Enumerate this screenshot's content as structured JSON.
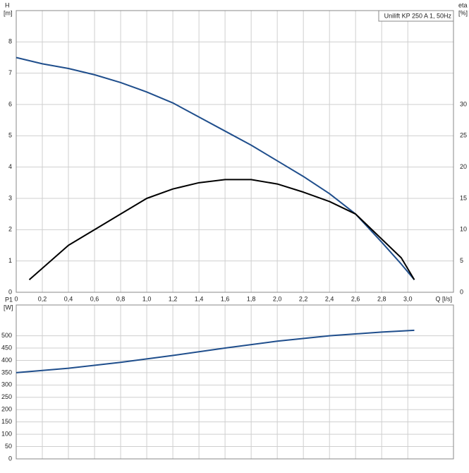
{
  "chart_data": [
    {
      "type": "line",
      "title": "Unilift KP 250 A 1, 50Hz",
      "ylabel": "H",
      "yunit": "[m]",
      "y2label": "eta",
      "y2unit": "[%]",
      "xlabel": "Q [l/s]",
      "xlim": [
        0,
        3.35
      ],
      "xticks": [
        0,
        {
          "value": 0.2,
          "label": "0,2"
        },
        {
          "value": 0.4,
          "label": "0,4"
        },
        {
          "value": 0.6,
          "label": "0,6"
        },
        {
          "value": 0.8,
          "label": "0,8"
        },
        {
          "value": 1.0,
          "label": "1,0"
        },
        {
          "value": 1.2,
          "label": "1,2"
        },
        {
          "value": 1.4,
          "label": "1,4"
        },
        {
          "value": 1.6,
          "label": "1,6"
        },
        {
          "value": 1.8,
          "label": "1,8"
        },
        {
          "value": 2.0,
          "label": "2,0"
        },
        {
          "value": 2.2,
          "label": "2,2"
        },
        {
          "value": 2.4,
          "label": "2,4"
        },
        {
          "value": 2.6,
          "label": "2,6"
        },
        {
          "value": 2.8,
          "label": "2,8"
        },
        {
          "value": 3.0,
          "label": "3,0"
        }
      ],
      "ylim": [
        0,
        9
      ],
      "yticks": [
        0,
        1,
        2,
        3,
        4,
        5,
        6,
        7,
        8
      ],
      "y2lim": [
        0,
        45
      ],
      "y2ticks": [
        0,
        5,
        10,
        15,
        20,
        25,
        30
      ],
      "grid": true,
      "series": [
        {
          "color": "#1f4e8c",
          "x": [
            0,
            0.2,
            0.4,
            0.6,
            0.8,
            1.0,
            1.2,
            1.4,
            1.6,
            1.8,
            2.0,
            2.2,
            2.4,
            2.6,
            2.8,
            2.95,
            3.05
          ],
          "values": [
            7.5,
            7.3,
            7.15,
            6.95,
            6.7,
            6.4,
            6.05,
            5.6,
            5.15,
            4.7,
            4.2,
            3.7,
            3.15,
            2.5,
            1.6,
            0.9,
            0.4
          ]
        },
        {
          "color": "#000000",
          "axis": "y2",
          "x": [
            0.1,
            0.4,
            0.8,
            1.0,
            1.2,
            1.4,
            1.6,
            1.8,
            2.0,
            2.2,
            2.4,
            2.6,
            2.8,
            2.95,
            3.05
          ],
          "values": [
            2,
            7.5,
            12.5,
            15,
            16.5,
            17.5,
            18,
            18,
            17.3,
            16,
            14.5,
            12.5,
            8.5,
            5.5,
            2
          ]
        }
      ]
    },
    {
      "type": "line",
      "ylabel": "P1",
      "yunit": "[W]",
      "xlim": [
        0,
        3.35
      ],
      "xticks": [
        0,
        0.2,
        0.4,
        0.6,
        0.8,
        1.0,
        1.2,
        1.4,
        1.6,
        1.8,
        2.0,
        2.2,
        2.4,
        2.6,
        2.8,
        3.0
      ],
      "ylim": [
        0,
        625
      ],
      "yticks": [
        0,
        50,
        100,
        150,
        200,
        250,
        300,
        350,
        400,
        450,
        500
      ],
      "grid": true,
      "series": [
        {
          "color": "#1f4e8c",
          "x": [
            0,
            0.4,
            0.8,
            1.2,
            1.6,
            2.0,
            2.4,
            2.8,
            3.05
          ],
          "values": [
            350,
            368,
            392,
            420,
            450,
            478,
            500,
            515,
            522
          ]
        }
      ]
    }
  ]
}
